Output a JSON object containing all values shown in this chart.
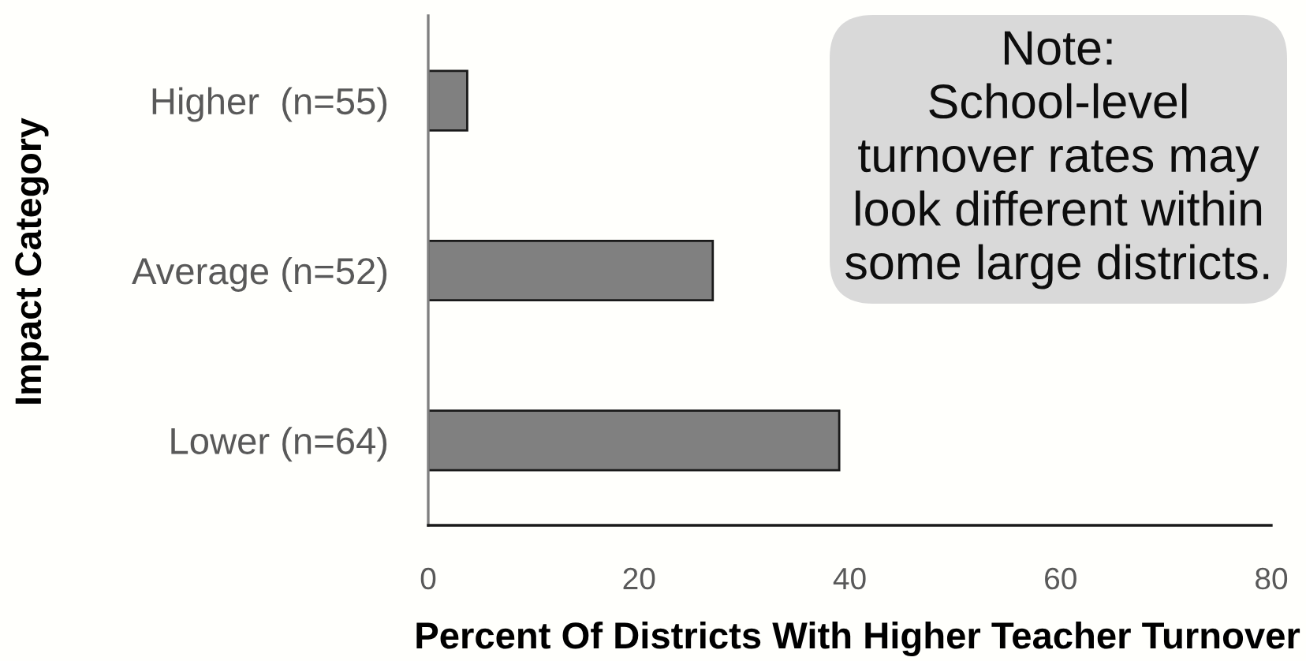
{
  "chart_data": {
    "type": "bar",
    "orientation": "horizontal",
    "categories": [
      "Higher  (n=55)",
      "Average (n=52)",
      "Lower (n=64)"
    ],
    "values": [
      3.7,
      27,
      39
    ],
    "color": "#808080",
    "xlabel": "Percent Of Districts With Higher Teacher Turnover",
    "ylabel": "Impact Category",
    "xlim": [
      0,
      80
    ],
    "xticks": [
      0,
      20,
      40,
      60,
      80
    ],
    "annotations": [
      "Note:\nSchool-level\nturnover rates may\nlook different within\nsome large districts."
    ]
  }
}
